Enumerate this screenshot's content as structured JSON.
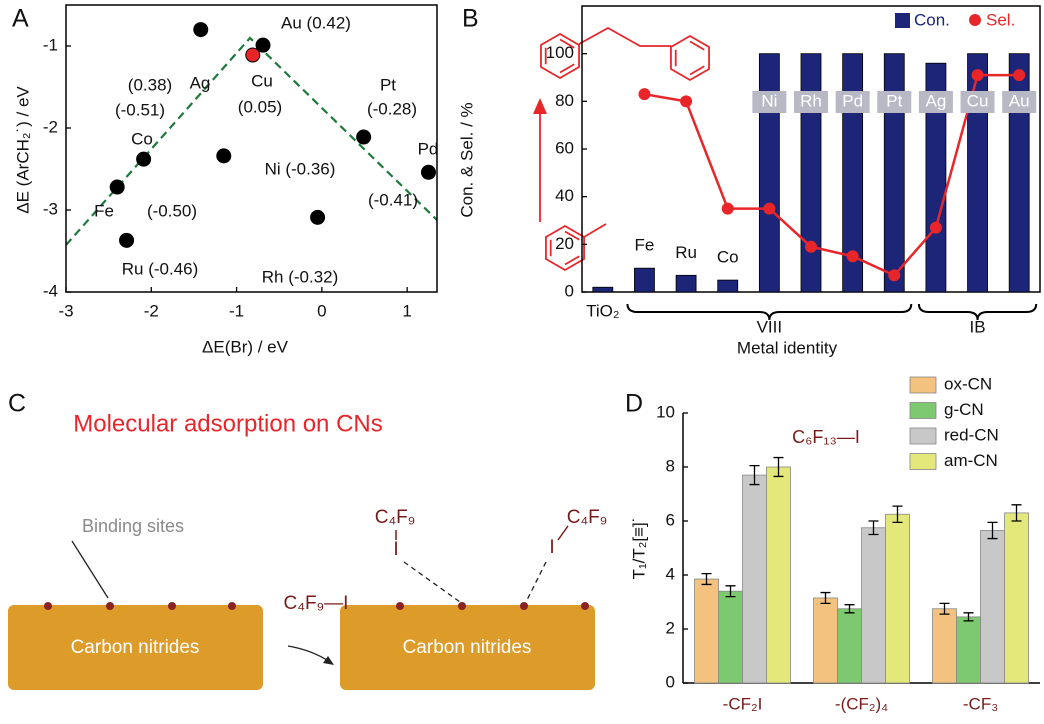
{
  "chart_data": [
    {
      "type": "scatter",
      "label": "A",
      "xlabel": "ΔE(Br) / eV",
      "ylabel": "ΔE (ArCH₂˙) / eV",
      "x": [
        -1.42,
        -0.69,
        -0.81,
        0.49,
        1.25,
        -2.09,
        -1.15,
        -2.4,
        -0.05,
        -2.29
      ],
      "values": [
        -0.8,
        -0.99,
        -1.11,
        -2.11,
        -2.54,
        -2.38,
        -2.34,
        -2.72,
        -3.09,
        -3.37
      ],
      "point_colors": [
        "#000000",
        "#000000",
        "#e8262a",
        "#000000",
        "#000000",
        "#000000",
        "#000000",
        "#000000",
        "#000000",
        "#000000"
      ],
      "annotations": [
        "(0.38)",
        "Ag",
        "Au (0.42)",
        "Cu",
        "(0.05)",
        "Pt",
        "(-0.28)",
        "Pd",
        "(-0.41)",
        "(-0.51)",
        "Co",
        "Ni (-0.36)",
        "Fe",
        "(-0.50)",
        "Ru (-0.46)",
        "Rh (-0.32)"
      ],
      "trend_color": "#1e7a3c",
      "xlim": [
        -3,
        1.35
      ],
      "xticks": [
        -3,
        -2,
        -1,
        0,
        1
      ],
      "ylim": [
        -4,
        -0.5
      ],
      "yticks": [
        -1,
        -2,
        -3,
        -4
      ]
    },
    {
      "type": "bar",
      "label": "B",
      "xlabel": "Metal identity",
      "ylabel": "Con. & Sel. / %",
      "categories": [
        "TiO₂",
        "Fe",
        "Ru",
        "Co",
        "Ni",
        "Rh",
        "Pd",
        "Pt",
        "Ag",
        "Cu",
        "Au"
      ],
      "series": [
        {
          "name": "Con.",
          "color": "#1c2577",
          "values": [
            2,
            10,
            7,
            5,
            100,
            100,
            100,
            100,
            96,
            100,
            100
          ]
        },
        {
          "name": "Sel.",
          "color": "#e8262a",
          "type": "line",
          "values": [
            null,
            83,
            80,
            35,
            35,
            19,
            15,
            7,
            27,
            91,
            91
          ]
        }
      ],
      "groups": [
        "VIII",
        "IB"
      ],
      "legend": "upper right",
      "ylim": [
        0,
        120
      ],
      "yticks": [
        0,
        20,
        40,
        60,
        80,
        100
      ]
    },
    {
      "type": "bar",
      "label": "D",
      "ylabel": "T₁/T₂[≡]˙",
      "annotation": "C₆F₁₃—I",
      "categories": [
        "-CF₂I",
        "-(CF₂)₄",
        "-CF₃"
      ],
      "series": [
        {
          "name": "ox-CN",
          "color": "#f2c27e",
          "values": [
            3.85,
            3.15,
            2.75
          ],
          "errors": [
            0.2,
            0.2,
            0.2
          ]
        },
        {
          "name": "g-CN",
          "color": "#7cc96f",
          "values": [
            3.4,
            2.75,
            2.45
          ],
          "errors": [
            0.2,
            0.15,
            0.15
          ]
        },
        {
          "name": "red-CN",
          "color": "#c8c8c8",
          "values": [
            7.7,
            5.75,
            5.65
          ],
          "errors": [
            0.35,
            0.25,
            0.3
          ]
        },
        {
          "name": "am-CN",
          "color": "#e4e87a",
          "values": [
            8.0,
            6.25,
            6.3
          ],
          "errors": [
            0.35,
            0.3,
            0.3
          ]
        }
      ],
      "legend": "upper right",
      "ylim": [
        0,
        10
      ],
      "yticks": [
        0,
        2,
        4,
        6,
        8,
        10
      ]
    }
  ],
  "diagram": {
    "label": "C",
    "title": "Molecular adsorption on CNs",
    "binding_sites": "Binding sites",
    "slabs": [
      "Carbon nitrides",
      "Carbon nitrides"
    ],
    "reagent": "C₄F₉—I",
    "adsorbed": [
      {
        "group": "C₄F₉",
        "atom": "I"
      },
      {
        "group": "C₄F₉",
        "atom": "I"
      }
    ]
  }
}
